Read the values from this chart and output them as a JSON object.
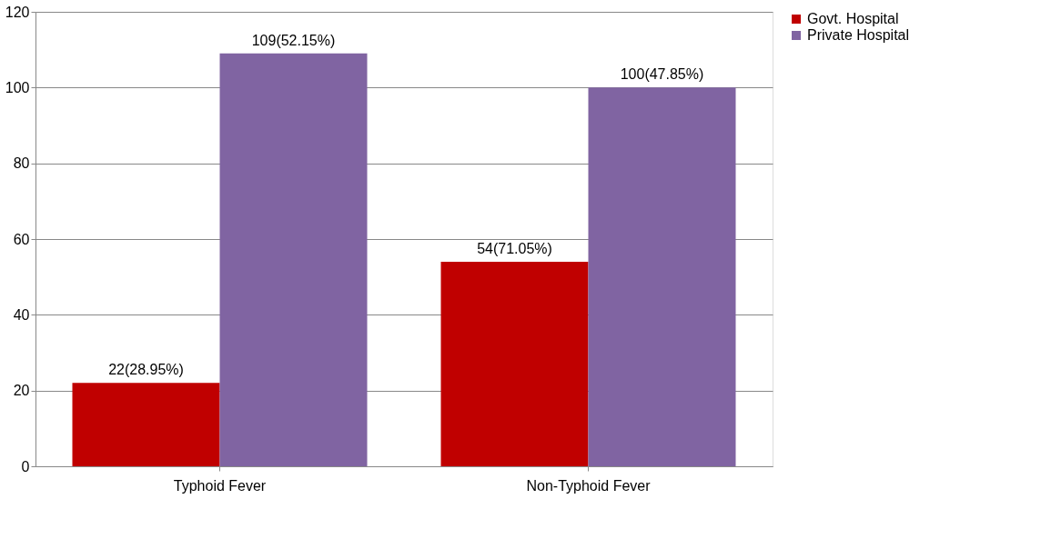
{
  "chart_data": {
    "type": "bar",
    "categories": [
      "Typhoid Fever",
      "Non-Typhoid Fever"
    ],
    "series": [
      {
        "name": "Govt. Hospital",
        "color": "#c00000",
        "values": [
          22,
          54
        ],
        "value_labels": [
          "22(28.95%)",
          "54(71.05%)"
        ]
      },
      {
        "name": "Private Hospital",
        "color": "#8064a2",
        "values": [
          109,
          100
        ],
        "value_labels": [
          "109(52.15%)",
          "100(47.85%)"
        ]
      }
    ],
    "ylim": [
      0,
      120
    ],
    "yticks": [
      0,
      20,
      40,
      60,
      80,
      100,
      120
    ],
    "grid": "y",
    "legend": "right"
  }
}
